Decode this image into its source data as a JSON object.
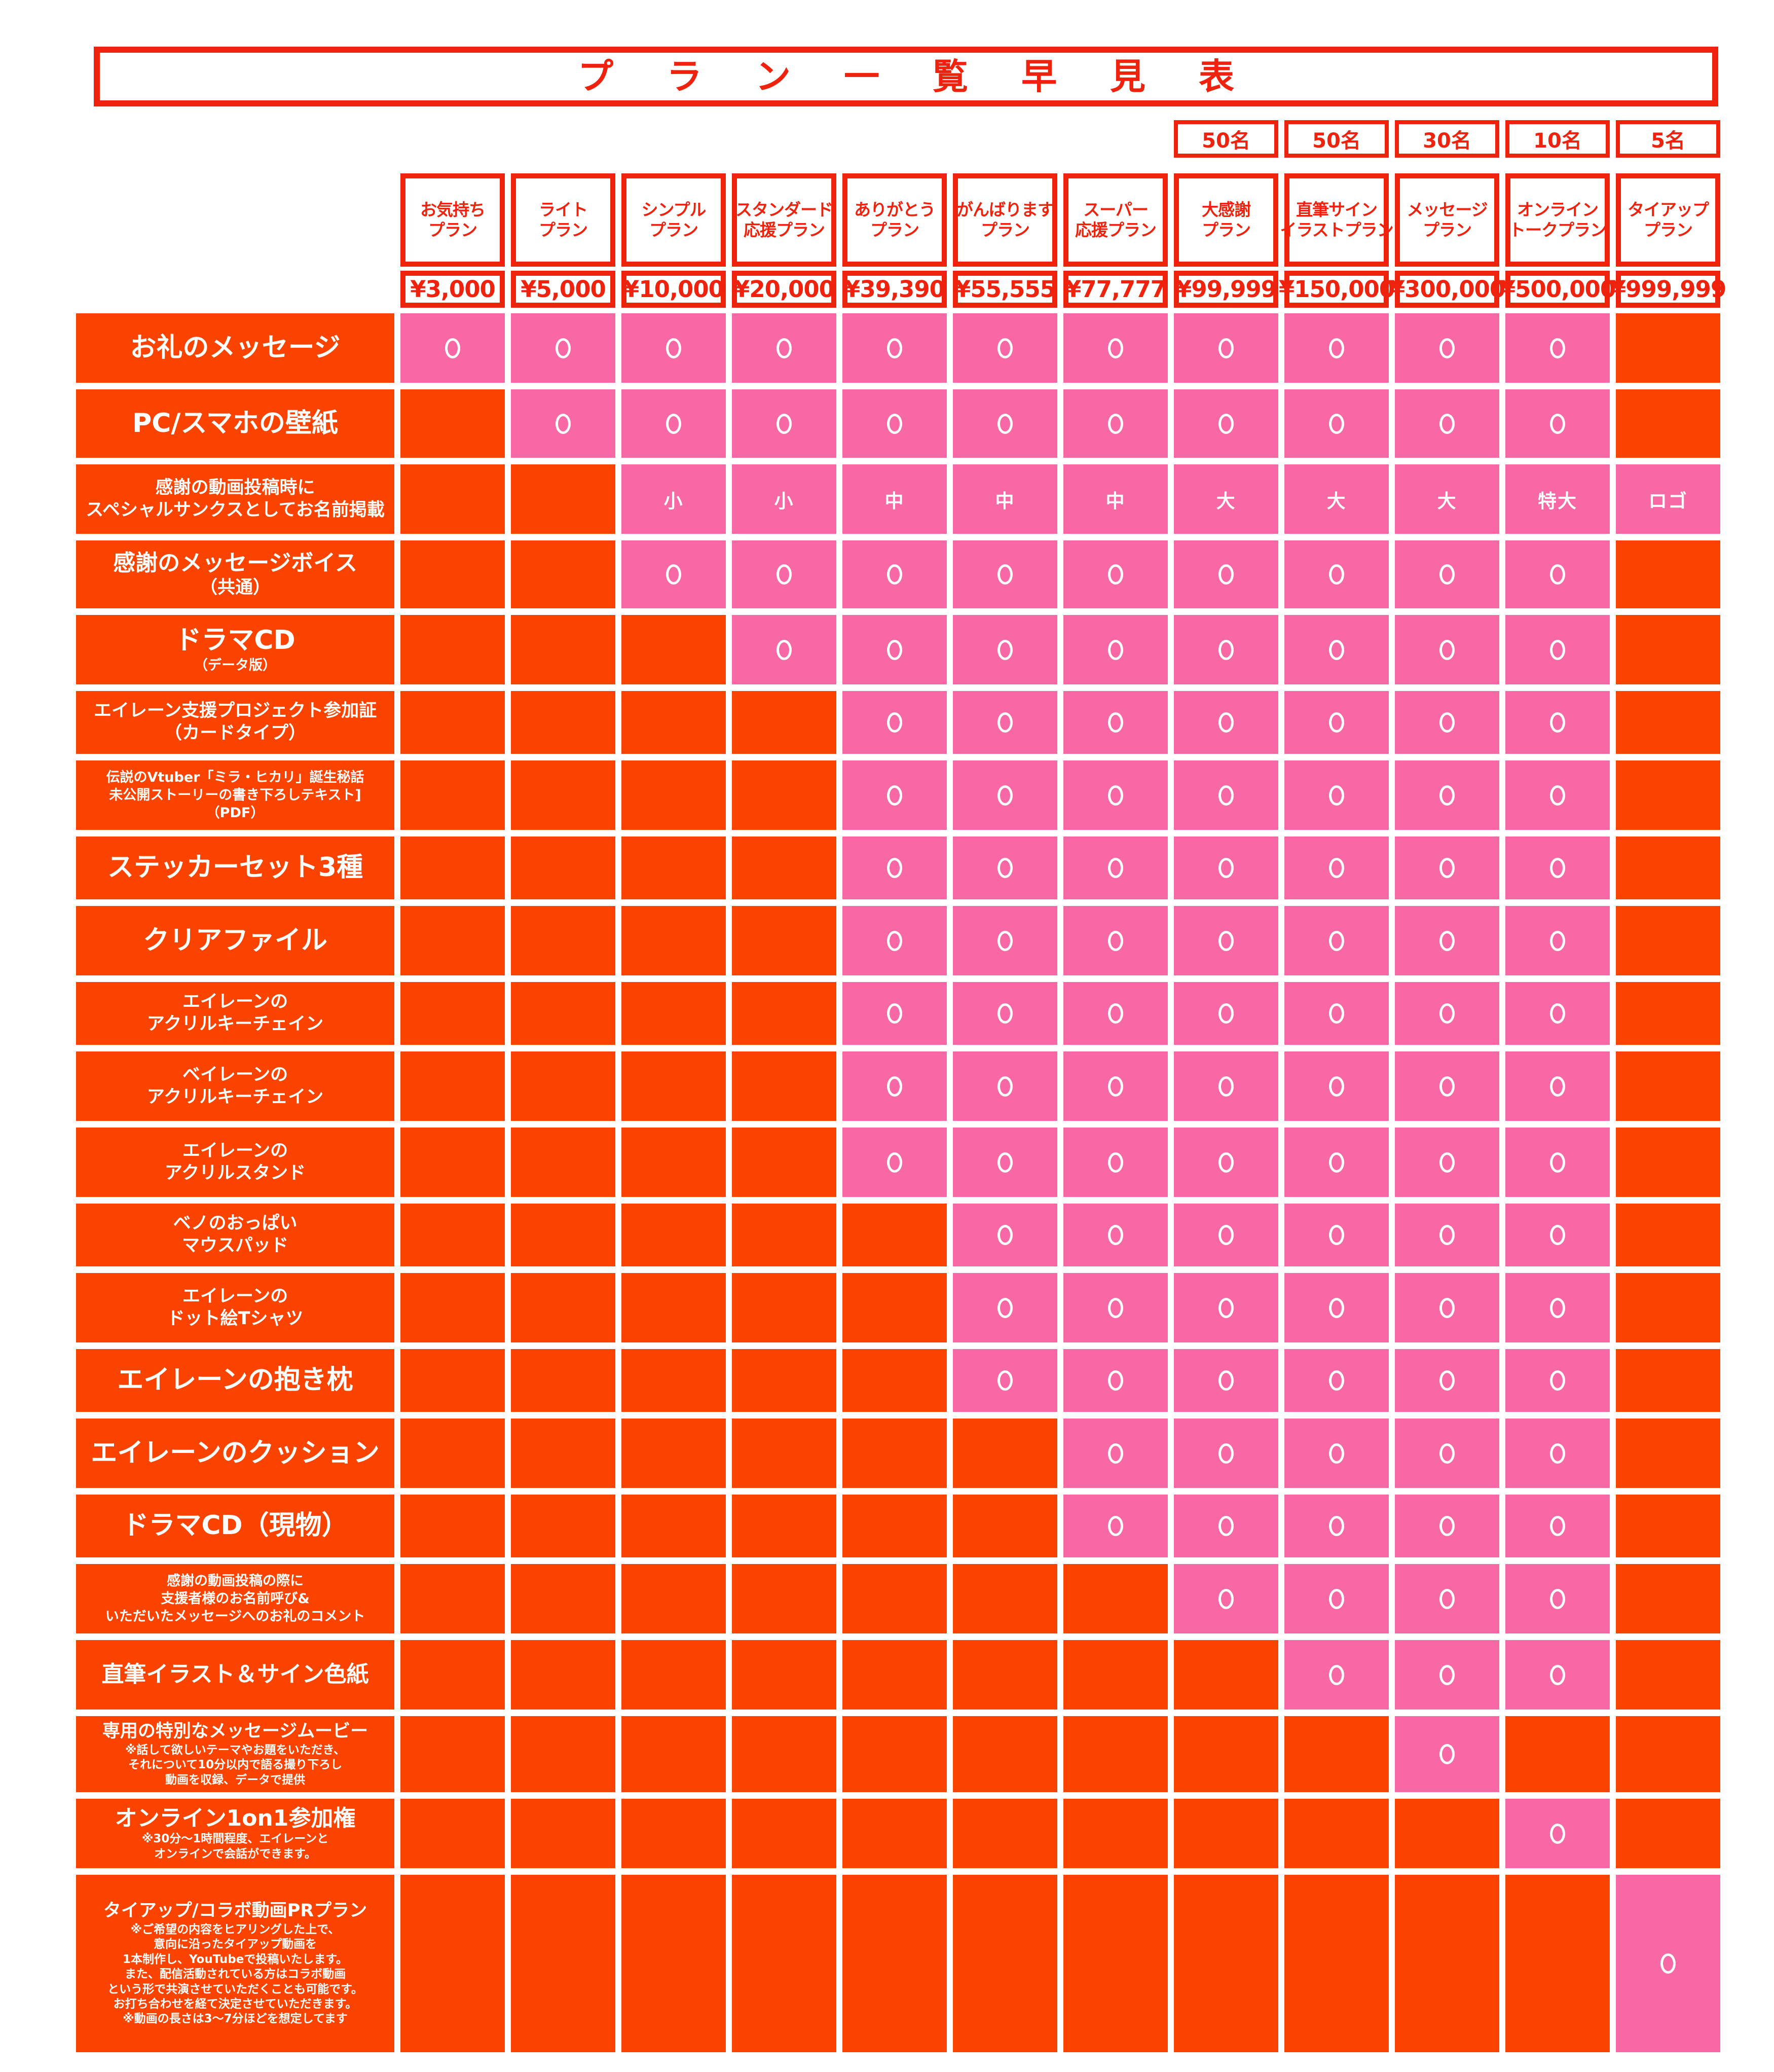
{
  "title": "プラン一覧早見表",
  "colors": {
    "accent_red": "#ee220d",
    "not_included_orange": "#fb4300",
    "included_pink": "#f768a4",
    "background": "#ffffff",
    "mark_white": "#ffffff"
  },
  "chart_data": {
    "type": "table",
    "title": "プラン一覧早見表",
    "legend": {
      "included_mark": "○",
      "not_included": "blank orange cell",
      "size_marks": [
        "小",
        "中",
        "大",
        "特大",
        "ロゴ"
      ]
    },
    "plans": [
      {
        "name_lines": [
          "お気持ち",
          "プラン"
        ],
        "price": "¥3,000",
        "limit": ""
      },
      {
        "name_lines": [
          "ライト",
          "プラン"
        ],
        "price": "¥5,000",
        "limit": ""
      },
      {
        "name_lines": [
          "シンプル",
          "プラン"
        ],
        "price": "¥10,000",
        "limit": ""
      },
      {
        "name_lines": [
          "スタンダード",
          "応援プラン"
        ],
        "price": "¥20,000",
        "limit": ""
      },
      {
        "name_lines": [
          "ありがとう",
          "プラン"
        ],
        "price": "¥39,390",
        "limit": ""
      },
      {
        "name_lines": [
          "がんばります",
          "プラン"
        ],
        "price": "¥55,555",
        "limit": ""
      },
      {
        "name_lines": [
          "スーパー",
          "応援プラン"
        ],
        "price": "¥77,777",
        "limit": ""
      },
      {
        "name_lines": [
          "大感謝",
          "プラン"
        ],
        "price": "¥99,999",
        "limit": "50名"
      },
      {
        "name_lines": [
          "直筆サイン",
          "イラストプラン"
        ],
        "price": "¥150,000",
        "limit": "50名"
      },
      {
        "name_lines": [
          "メッセージ",
          "プラン"
        ],
        "price": "¥300,000",
        "limit": "30名"
      },
      {
        "name_lines": [
          "オンライン",
          "トークプラン"
        ],
        "price": "¥500,000",
        "limit": "10名"
      },
      {
        "name_lines": [
          "タイアップ",
          "プラン"
        ],
        "price": "¥999,999",
        "limit": "5名"
      }
    ],
    "benefits": [
      {
        "label_lines": [
          {
            "text": "お礼のメッセージ",
            "size": "xl"
          }
        ],
        "cells": [
          "○",
          "○",
          "○",
          "○",
          "○",
          "○",
          "○",
          "○",
          "○",
          "○",
          "○",
          ""
        ]
      },
      {
        "label_lines": [
          {
            "text": "PC/スマホの壁紙",
            "size": "xl"
          }
        ],
        "cells": [
          "",
          "○",
          "○",
          "○",
          "○",
          "○",
          "○",
          "○",
          "○",
          "○",
          "○",
          ""
        ]
      },
      {
        "label_lines": [
          {
            "text": "感謝の動画投稿時に",
            "size": "md"
          },
          {
            "text": "スペシャルサンクスとしてお名前掲載",
            "size": "md"
          }
        ],
        "cells": [
          "",
          "",
          "小",
          "小",
          "中",
          "中",
          "中",
          "大",
          "大",
          "大",
          "特大",
          "ロゴ"
        ]
      },
      {
        "label_lines": [
          {
            "text": "感謝のメッセージボイス",
            "size": "lg"
          },
          {
            "text": "（共通）",
            "size": "md"
          }
        ],
        "cells": [
          "",
          "",
          "○",
          "○",
          "○",
          "○",
          "○",
          "○",
          "○",
          "○",
          "○",
          ""
        ]
      },
      {
        "label_lines": [
          {
            "text": "ドラマCD",
            "size": "xl"
          },
          {
            "text": "（データ版）",
            "size": "sm"
          }
        ],
        "cells": [
          "",
          "",
          "",
          "○",
          "○",
          "○",
          "○",
          "○",
          "○",
          "○",
          "○",
          ""
        ]
      },
      {
        "label_lines": [
          {
            "text": "エイレーン支援プロジェクト参加証",
            "size": "md"
          },
          {
            "text": "（カードタイプ）",
            "size": "md"
          }
        ],
        "cells": [
          "",
          "",
          "",
          "",
          "○",
          "○",
          "○",
          "○",
          "○",
          "○",
          "○",
          ""
        ]
      },
      {
        "label_lines": [
          {
            "text": "伝説のVtuber「ミラ・ヒカリ」誕生秘話",
            "size": "sm"
          },
          {
            "text": "未公開ストーリーの書き下ろしテキスト]",
            "size": "sm"
          },
          {
            "text": "（PDF）",
            "size": "sm"
          }
        ],
        "cells": [
          "",
          "",
          "",
          "",
          "○",
          "○",
          "○",
          "○",
          "○",
          "○",
          "○",
          ""
        ]
      },
      {
        "label_lines": [
          {
            "text": "ステッカーセット3種",
            "size": "xl"
          }
        ],
        "cells": [
          "",
          "",
          "",
          "",
          "○",
          "○",
          "○",
          "○",
          "○",
          "○",
          "○",
          ""
        ]
      },
      {
        "label_lines": [
          {
            "text": "クリアファイル",
            "size": "xl"
          }
        ],
        "cells": [
          "",
          "",
          "",
          "",
          "○",
          "○",
          "○",
          "○",
          "○",
          "○",
          "○",
          ""
        ]
      },
      {
        "label_lines": [
          {
            "text": "エイレーンの",
            "size": "md"
          },
          {
            "text": "アクリルキーチェイン",
            "size": "md"
          }
        ],
        "cells": [
          "",
          "",
          "",
          "",
          "○",
          "○",
          "○",
          "○",
          "○",
          "○",
          "○",
          ""
        ]
      },
      {
        "label_lines": [
          {
            "text": "ベイレーンの",
            "size": "md"
          },
          {
            "text": "アクリルキーチェイン",
            "size": "md"
          }
        ],
        "cells": [
          "",
          "",
          "",
          "",
          "○",
          "○",
          "○",
          "○",
          "○",
          "○",
          "○",
          ""
        ]
      },
      {
        "label_lines": [
          {
            "text": "エイレーンの",
            "size": "md"
          },
          {
            "text": "アクリルスタンド",
            "size": "md"
          }
        ],
        "cells": [
          "",
          "",
          "",
          "",
          "○",
          "○",
          "○",
          "○",
          "○",
          "○",
          "○",
          ""
        ]
      },
      {
        "label_lines": [
          {
            "text": "ベノのおっぱい",
            "size": "md"
          },
          {
            "text": "マウスパッド",
            "size": "md"
          }
        ],
        "cells": [
          "",
          "",
          "",
          "",
          "",
          "○",
          "○",
          "○",
          "○",
          "○",
          "○",
          ""
        ]
      },
      {
        "label_lines": [
          {
            "text": "エイレーンの",
            "size": "md"
          },
          {
            "text": "ドット絵Tシャツ",
            "size": "md"
          }
        ],
        "cells": [
          "",
          "",
          "",
          "",
          "",
          "○",
          "○",
          "○",
          "○",
          "○",
          "○",
          ""
        ]
      },
      {
        "label_lines": [
          {
            "text": "エイレーンの抱き枕",
            "size": "xl"
          }
        ],
        "cells": [
          "",
          "",
          "",
          "",
          "",
          "○",
          "○",
          "○",
          "○",
          "○",
          "○",
          ""
        ]
      },
      {
        "label_lines": [
          {
            "text": "エイレーンのクッション",
            "size": "xl"
          }
        ],
        "cells": [
          "",
          "",
          "",
          "",
          "",
          "",
          "○",
          "○",
          "○",
          "○",
          "○",
          ""
        ]
      },
      {
        "label_lines": [
          {
            "text": "ドラマCD（現物）",
            "size": "xl"
          }
        ],
        "cells": [
          "",
          "",
          "",
          "",
          "",
          "",
          "○",
          "○",
          "○",
          "○",
          "○",
          ""
        ]
      },
      {
        "label_lines": [
          {
            "text": "感謝の動画投稿の際に",
            "size": "sm"
          },
          {
            "text": "支援者様のお名前呼び&",
            "size": "sm"
          },
          {
            "text": "いただいたメッセージへのお礼のコメント",
            "size": "sm"
          }
        ],
        "cells": [
          "",
          "",
          "",
          "",
          "",
          "",
          "",
          "○",
          "○",
          "○",
          "○",
          ""
        ]
      },
      {
        "label_lines": [
          {
            "text": "直筆イラスト＆サイン色紙",
            "size": "lg"
          }
        ],
        "cells": [
          "",
          "",
          "",
          "",
          "",
          "",
          "",
          "",
          "○",
          "○",
          "○",
          ""
        ]
      },
      {
        "label_lines": [
          {
            "text": "専用の特別なメッセージムービー",
            "size": "md"
          },
          {
            "text": "※話して欲しいテーマやお題をいただき、",
            "size": "xs"
          },
          {
            "text": "それについて10分以内で語る撮り下ろし",
            "size": "xs"
          },
          {
            "text": "動画を収録、データで提供",
            "size": "xs"
          }
        ],
        "cells": [
          "",
          "",
          "",
          "",
          "",
          "",
          "",
          "",
          "",
          "○",
          "",
          ""
        ]
      },
      {
        "label_lines": [
          {
            "text": "オンライン1on1参加権",
            "size": "lg"
          },
          {
            "text": "※30分～1時間程度、エイレーンと",
            "size": "xs"
          },
          {
            "text": "オンラインで会話ができます。",
            "size": "xs"
          }
        ],
        "cells": [
          "",
          "",
          "",
          "",
          "",
          "",
          "",
          "",
          "",
          "",
          "○",
          ""
        ]
      },
      {
        "label_lines": [
          {
            "text": "タイアップ/コラボ動画PRプラン",
            "size": "md"
          },
          {
            "text": "※ご希望の内容をヒアリングした上で、",
            "size": "xs"
          },
          {
            "text": "意向に沿ったタイアップ動画を",
            "size": "xs"
          },
          {
            "text": "1本制作し、YouTubeで投稿いたします。",
            "size": "xs"
          },
          {
            "text": "また、配信活動されている方はコラボ動画",
            "size": "xs"
          },
          {
            "text": "という形で共演させていただくことも可能です。",
            "size": "xs"
          },
          {
            "text": "お打ち合わせを経て決定させていただきます。",
            "size": "xs"
          },
          {
            "text": "※動画の長さは3～7分ほどを想定してます",
            "size": "xs"
          }
        ],
        "cells": [
          "",
          "",
          "",
          "",
          "",
          "",
          "",
          "",
          "",
          "",
          "",
          "○"
        ]
      }
    ]
  }
}
